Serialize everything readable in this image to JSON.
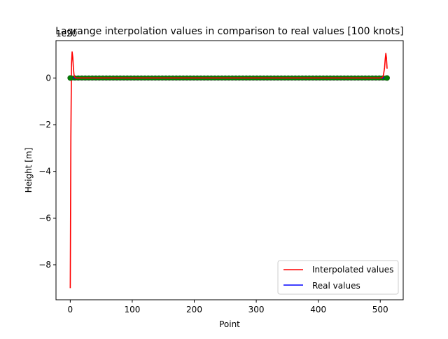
{
  "chart_data": {
    "type": "line",
    "title": "Lagrange interpolation values in comparison to real values [100 knots]",
    "xlabel": "Point",
    "ylabel": "Height [m]",
    "y_scale_label": "1e20",
    "xlim": [
      -23,
      537
    ],
    "ylim": [
      -9.5,
      1.6
    ],
    "x_ticks": [
      0,
      100,
      200,
      300,
      400,
      500
    ],
    "y_ticks": [
      -8,
      -6,
      -4,
      -2,
      0
    ],
    "x_tick_labels": [
      "0",
      "100",
      "200",
      "300",
      "400",
      "500"
    ],
    "y_tick_labels": [
      "−8",
      "−6",
      "−4",
      "−2",
      "0"
    ],
    "grid": false,
    "legend_position": "lower-right",
    "series": [
      {
        "name": "Interpolated values",
        "color": "#ff0000",
        "style": "solid",
        "x": [
          0,
          1,
          2,
          3,
          4,
          5,
          6,
          7,
          8,
          10,
          14,
          20,
          50,
          100,
          200,
          300,
          400,
          480,
          500,
          503,
          505,
          507,
          508,
          509,
          510,
          511
        ],
        "y": [
          -9.0,
          -2.5,
          0.6,
          1.12,
          0.9,
          0.45,
          0.15,
          0.05,
          0.01,
          0,
          0,
          0,
          0,
          0,
          0,
          0,
          0,
          0,
          0,
          0.01,
          0.1,
          0.45,
          0.8,
          1.05,
          0.85,
          0.4
        ]
      },
      {
        "name": "Real values",
        "color": "#0000ff",
        "style": "solid",
        "x": [
          0,
          511
        ],
        "y": [
          0,
          0
        ]
      },
      {
        "name": "",
        "color": "#008000",
        "style": "markers",
        "x": [
          0,
          511
        ],
        "y": [
          0,
          0
        ]
      }
    ]
  }
}
